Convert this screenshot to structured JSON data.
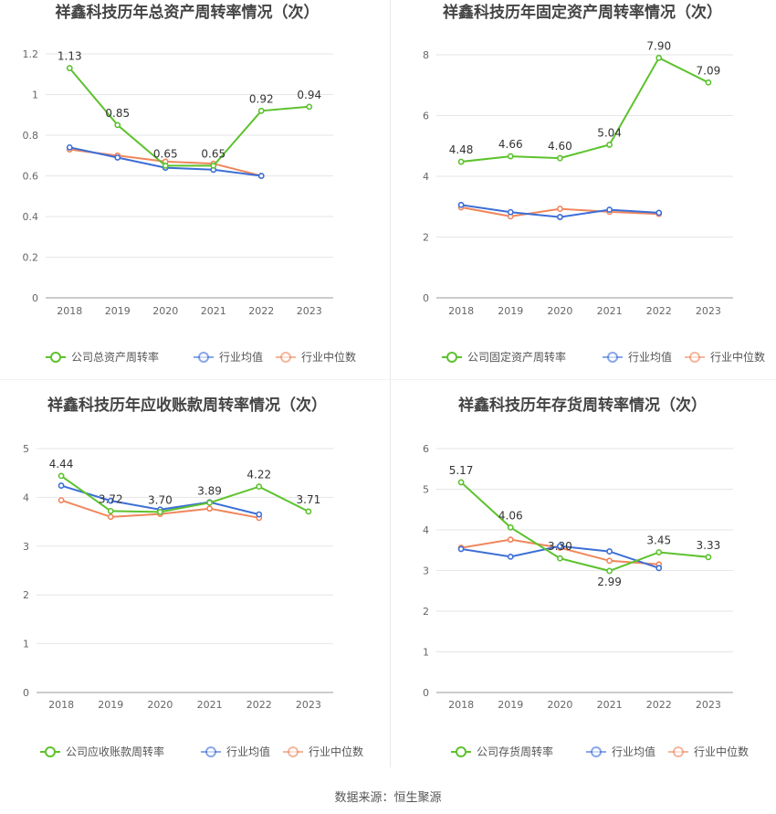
{
  "source_label": "数据来源：恒生聚源",
  "chart_data": [
    {
      "type": "line",
      "title": "祥鑫科技历年总资产周转率情况（次）",
      "categories": [
        "2018",
        "2019",
        "2020",
        "2021",
        "2022",
        "2023"
      ],
      "ylim": [
        0,
        1.2
      ],
      "yticks": [
        "0",
        "0.2",
        "0.4",
        "0.6",
        "0.8",
        "1",
        "1.2"
      ],
      "ytick_values": [
        0,
        0.2,
        0.4,
        0.6,
        0.8,
        1.0,
        1.2
      ],
      "grid": true,
      "legend_position": "bottom",
      "series": [
        {
          "name": "公司总资产周转率",
          "color": "#5cc22d",
          "values": [
            1.13,
            0.85,
            0.65,
            0.65,
            0.92,
            0.94
          ],
          "labels": [
            "1.13",
            "0.85",
            "0.65",
            "0.65",
            "0.92",
            "0.94"
          ]
        },
        {
          "name": "行业均值",
          "color": "#3c6ed6",
          "values": [
            0.74,
            0.69,
            0.64,
            0.63,
            0.6,
            null
          ]
        },
        {
          "name": "行业中位数",
          "color": "#f0865c",
          "values": [
            0.73,
            0.7,
            0.67,
            0.66,
            0.6,
            null
          ]
        }
      ]
    },
    {
      "type": "line",
      "title": "祥鑫科技历年固定资产周转率情况（次）",
      "categories": [
        "2018",
        "2019",
        "2020",
        "2021",
        "2022",
        "2023"
      ],
      "ylim": [
        0,
        8
      ],
      "yticks": [
        "0",
        "2",
        "4",
        "6",
        "8"
      ],
      "ytick_values": [
        0,
        2,
        4,
        6,
        8
      ],
      "grid": true,
      "legend_position": "bottom",
      "series": [
        {
          "name": "公司固定资产周转率",
          "color": "#5cc22d",
          "values": [
            4.48,
            4.66,
            4.6,
            5.04,
            7.9,
            7.09
          ],
          "labels": [
            "4.48",
            "4.66",
            "4.60",
            "5.04",
            "7.90",
            "7.09"
          ]
        },
        {
          "name": "行业均值",
          "color": "#3c6ed6",
          "values": [
            3.06,
            2.82,
            2.66,
            2.9,
            2.8,
            null
          ]
        },
        {
          "name": "行业中位数",
          "color": "#f0865c",
          "values": [
            2.98,
            2.68,
            2.93,
            2.83,
            2.76,
            null
          ]
        }
      ]
    },
    {
      "type": "line",
      "title": "祥鑫科技历年应收账款周转率情况（次）",
      "categories": [
        "2018",
        "2019",
        "2020",
        "2021",
        "2022",
        "2023"
      ],
      "ylim": [
        0,
        5
      ],
      "yticks": [
        "0",
        "1",
        "2",
        "3",
        "4",
        "5"
      ],
      "ytick_values": [
        0,
        1,
        2,
        3,
        4,
        5
      ],
      "grid": true,
      "legend_position": "bottom",
      "series": [
        {
          "name": "公司应收账款周转率",
          "color": "#5cc22d",
          "values": [
            4.44,
            3.72,
            3.7,
            3.89,
            4.22,
            3.71
          ],
          "labels": [
            "4.44",
            "3.72",
            "3.70",
            "3.89",
            "4.22",
            "3.71"
          ]
        },
        {
          "name": "行业均值",
          "color": "#3c6ed6",
          "values": [
            4.24,
            3.93,
            3.75,
            3.9,
            3.65,
            null
          ]
        },
        {
          "name": "行业中位数",
          "color": "#f0865c",
          "values": [
            3.94,
            3.6,
            3.66,
            3.77,
            3.58,
            null
          ]
        }
      ]
    },
    {
      "type": "line",
      "title": "祥鑫科技历年存货周转率情况（次）",
      "categories": [
        "2018",
        "2019",
        "2020",
        "2021",
        "2022",
        "2023"
      ],
      "ylim": [
        0,
        6
      ],
      "yticks": [
        "0",
        "1",
        "2",
        "3",
        "4",
        "5",
        "6"
      ],
      "ytick_values": [
        0,
        1,
        2,
        3,
        4,
        5,
        6
      ],
      "grid": true,
      "legend_position": "bottom",
      "series": [
        {
          "name": "公司存货周转率",
          "color": "#5cc22d",
          "values": [
            5.17,
            4.06,
            3.3,
            2.99,
            3.45,
            3.33
          ],
          "labels": [
            "5.17",
            "4.06",
            "3.30",
            "2.99",
            "3.45",
            "3.33"
          ]
        },
        {
          "name": "行业均值",
          "color": "#3c6ed6",
          "values": [
            3.53,
            3.34,
            3.6,
            3.47,
            3.06,
            null
          ]
        },
        {
          "name": "行业中位数",
          "color": "#f0865c",
          "values": [
            3.56,
            3.76,
            3.56,
            3.24,
            3.15,
            null
          ]
        }
      ]
    }
  ]
}
